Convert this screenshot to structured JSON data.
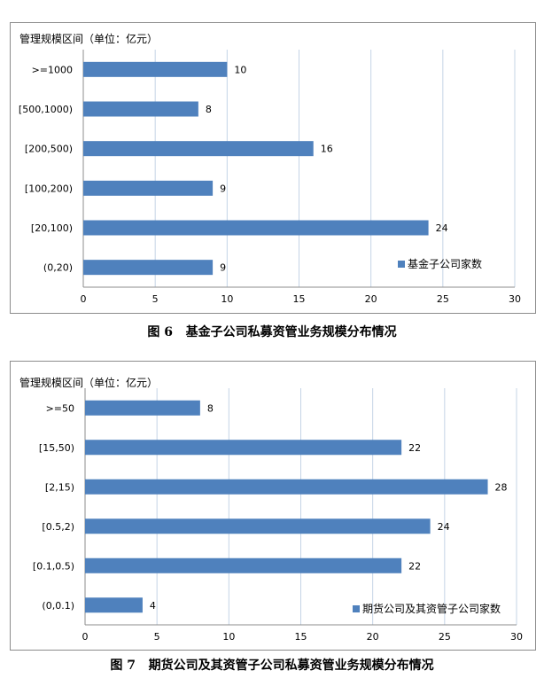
{
  "chart_data": [
    {
      "type": "bar",
      "orientation": "horizontal",
      "ylabel": "管理规模区间（单位：亿元）",
      "categories": [
        ">=1000",
        "[500,1000)",
        "[200,500)",
        "[100,200)",
        "[20,100)",
        "(0,20)"
      ],
      "series": [
        {
          "name": "基金子公司家数",
          "values": [
            10,
            8,
            16,
            9,
            24,
            9
          ],
          "color": "#4f81bd"
        }
      ],
      "xlim": [
        0,
        30
      ],
      "xticks": [
        0,
        5,
        10,
        15,
        20,
        25,
        30
      ],
      "grid": "vertical",
      "legend": "bottom-right",
      "caption_number": "图 6",
      "caption_text": "基金子公司私募资管业务规模分布情况"
    },
    {
      "type": "bar",
      "orientation": "horizontal",
      "ylabel": "管理规模区间（单位：亿元）",
      "categories": [
        ">=50",
        "[15,50)",
        "[2,15)",
        "[0.5,2)",
        "[0.1,0.5)",
        "(0,0.1)"
      ],
      "series": [
        {
          "name": "期货公司及其资管子公司家数",
          "values": [
            8,
            22,
            28,
            24,
            22,
            4
          ],
          "color": "#4f81bd"
        }
      ],
      "xlim": [
        0,
        30
      ],
      "xticks": [
        0,
        5,
        10,
        15,
        20,
        25,
        30
      ],
      "grid": "vertical",
      "legend": "bottom-right",
      "caption_number": "图 7",
      "caption_text": "期货公司及其资管子公司私募资管业务规模分布情况"
    }
  ]
}
